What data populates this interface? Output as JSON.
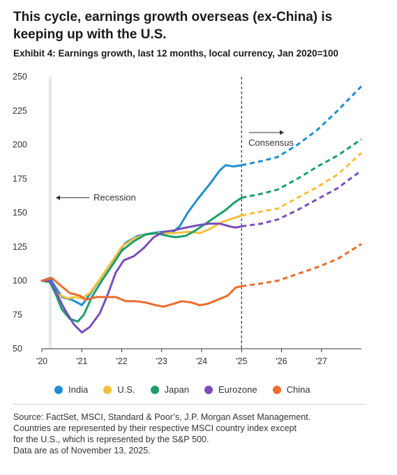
{
  "title": "This cycle, earnings growth overseas (ex-China) is keeping up with the U.S.",
  "subtitle": "Exhibit 4: Earnings growth, last 12 months, local currency, Jan 2020=100",
  "annotations": {
    "recession": "Recession",
    "consensus": "Consensus"
  },
  "source_lines": [
    "Source: FactSet, MSCI, Standard & Poor’s, J.P. Morgan Asset Management.",
    "Countries are represented by their respective MSCI country index except",
    "for the U.S., which is represented by the S&P 500.",
    "Data are as of November 13, 2025."
  ],
  "chart_data": {
    "type": "line",
    "title": "",
    "xlabel": "",
    "ylabel": "",
    "xlim": [
      2020,
      2028
    ],
    "ylim": [
      50,
      250
    ],
    "y_ticks": [
      50,
      75,
      100,
      125,
      150,
      175,
      200,
      225,
      250
    ],
    "x_ticks": [
      {
        "value": 2020,
        "label": "'20"
      },
      {
        "value": 2021,
        "label": "'21"
      },
      {
        "value": 2022,
        "label": "'22"
      },
      {
        "value": 2023,
        "label": "'23"
      },
      {
        "value": 2024,
        "label": "'24"
      },
      {
        "value": 2025,
        "label": "'25"
      },
      {
        "value": 2026,
        "label": "'26"
      },
      {
        "value": 2027,
        "label": "'27"
      }
    ],
    "grid": "none",
    "recession_band": [
      2020.17,
      2020.25
    ],
    "forecast_start": 2025.0,
    "legend_position": "bottom",
    "series": [
      {
        "name": "India",
        "color": "#1f8fd0",
        "actual": [
          [
            2020,
            100
          ],
          [
            2020.2,
            102
          ],
          [
            2020.35,
            95
          ],
          [
            2020.5,
            88
          ],
          [
            2020.75,
            86
          ],
          [
            2020.95,
            83
          ],
          [
            2021.0,
            82
          ],
          [
            2021.2,
            90
          ],
          [
            2021.5,
            103
          ],
          [
            2021.85,
            118
          ],
          [
            2022.1,
            128
          ],
          [
            2022.4,
            133
          ],
          [
            2022.75,
            135
          ],
          [
            2023.0,
            136
          ],
          [
            2023.25,
            135
          ],
          [
            2023.45,
            140
          ],
          [
            2023.65,
            150
          ],
          [
            2023.9,
            160
          ],
          [
            2024.2,
            171
          ],
          [
            2024.45,
            181
          ],
          [
            2024.6,
            185
          ],
          [
            2024.8,
            184
          ],
          [
            2025.0,
            185
          ]
        ],
        "forecast": [
          [
            2025.0,
            185
          ],
          [
            2025.5,
            188
          ],
          [
            2025.9,
            191
          ],
          [
            2026.4,
            200
          ],
          [
            2026.9,
            211
          ],
          [
            2027.4,
            225
          ],
          [
            2028.0,
            243
          ]
        ]
      },
      {
        "name": "U.S.",
        "color": "#f6bf3c",
        "actual": [
          [
            2020,
            100
          ],
          [
            2020.2,
            99
          ],
          [
            2020.4,
            90
          ],
          [
            2020.65,
            87
          ],
          [
            2020.85,
            88
          ],
          [
            2021.0,
            87
          ],
          [
            2021.2,
            91
          ],
          [
            2021.5,
            103
          ],
          [
            2021.8,
            116
          ],
          [
            2022.0,
            125
          ],
          [
            2022.3,
            131
          ],
          [
            2022.6,
            134
          ],
          [
            2022.9,
            135
          ],
          [
            2023.3,
            135
          ],
          [
            2023.7,
            136
          ],
          [
            2023.95,
            135
          ],
          [
            2024.2,
            138
          ],
          [
            2024.5,
            143
          ],
          [
            2024.8,
            146
          ],
          [
            2025.0,
            148
          ]
        ],
        "forecast": [
          [
            2025.0,
            148
          ],
          [
            2025.5,
            151
          ],
          [
            2025.9,
            153
          ],
          [
            2026.4,
            161
          ],
          [
            2026.9,
            169
          ],
          [
            2027.4,
            178
          ],
          [
            2028.0,
            194
          ]
        ]
      },
      {
        "name": "Japan",
        "color": "#1b9e6a",
        "actual": [
          [
            2020,
            100
          ],
          [
            2020.2,
            99
          ],
          [
            2020.35,
            90
          ],
          [
            2020.5,
            79
          ],
          [
            2020.7,
            72
          ],
          [
            2020.9,
            70
          ],
          [
            2021.05,
            75
          ],
          [
            2021.25,
            88
          ],
          [
            2021.5,
            100
          ],
          [
            2021.8,
            113
          ],
          [
            2022.0,
            122
          ],
          [
            2022.3,
            129
          ],
          [
            2022.6,
            134
          ],
          [
            2022.85,
            135
          ],
          [
            2023.0,
            134
          ],
          [
            2023.15,
            133
          ],
          [
            2023.35,
            132
          ],
          [
            2023.6,
            133
          ],
          [
            2023.85,
            137
          ],
          [
            2024.1,
            142
          ],
          [
            2024.35,
            147
          ],
          [
            2024.6,
            152
          ],
          [
            2024.8,
            157
          ],
          [
            2025.0,
            161
          ]
        ],
        "forecast": [
          [
            2025.0,
            161
          ],
          [
            2025.5,
            164
          ],
          [
            2025.9,
            167
          ],
          [
            2026.4,
            175
          ],
          [
            2026.9,
            184
          ],
          [
            2027.4,
            192
          ],
          [
            2028.0,
            204
          ]
        ]
      },
      {
        "name": "Eurozone",
        "color": "#7a4fb8",
        "actual": [
          [
            2020,
            100
          ],
          [
            2020.2,
            100
          ],
          [
            2020.35,
            92
          ],
          [
            2020.55,
            80
          ],
          [
            2020.8,
            68
          ],
          [
            2021.0,
            62
          ],
          [
            2021.2,
            66
          ],
          [
            2021.45,
            76
          ],
          [
            2021.65,
            90
          ],
          [
            2021.85,
            106
          ],
          [
            2022.05,
            115
          ],
          [
            2022.3,
            118
          ],
          [
            2022.55,
            124
          ],
          [
            2022.8,
            132
          ],
          [
            2023.05,
            136
          ],
          [
            2023.3,
            137
          ],
          [
            2023.6,
            139
          ],
          [
            2023.95,
            141
          ],
          [
            2024.2,
            142
          ],
          [
            2024.45,
            142
          ],
          [
            2024.7,
            140
          ],
          [
            2024.85,
            139
          ],
          [
            2025.0,
            140
          ]
        ],
        "forecast": [
          [
            2025.0,
            140
          ],
          [
            2025.5,
            142
          ],
          [
            2025.9,
            145
          ],
          [
            2026.4,
            152
          ],
          [
            2026.9,
            160
          ],
          [
            2027.4,
            168
          ],
          [
            2028.0,
            181
          ]
        ]
      },
      {
        "name": "China",
        "color": "#ec6b2d",
        "actual": [
          [
            2020,
            100
          ],
          [
            2020.25,
            102
          ],
          [
            2020.45,
            97
          ],
          [
            2020.7,
            91
          ],
          [
            2020.95,
            89
          ],
          [
            2021.1,
            86
          ],
          [
            2021.35,
            88
          ],
          [
            2021.6,
            88
          ],
          [
            2021.85,
            88
          ],
          [
            2022.1,
            85
          ],
          [
            2022.35,
            85
          ],
          [
            2022.6,
            84
          ],
          [
            2022.85,
            82
          ],
          [
            2023.05,
            81
          ],
          [
            2023.3,
            83
          ],
          [
            2023.5,
            85
          ],
          [
            2023.75,
            84
          ],
          [
            2023.95,
            82
          ],
          [
            2024.15,
            83
          ],
          [
            2024.4,
            86
          ],
          [
            2024.65,
            89
          ],
          [
            2024.85,
            95
          ],
          [
            2025.0,
            96
          ]
        ],
        "forecast": [
          [
            2025.0,
            96
          ],
          [
            2025.5,
            98
          ],
          [
            2025.9,
            100
          ],
          [
            2026.4,
            105
          ],
          [
            2026.9,
            110
          ],
          [
            2027.4,
            116
          ],
          [
            2028.0,
            127
          ]
        ]
      }
    ]
  }
}
